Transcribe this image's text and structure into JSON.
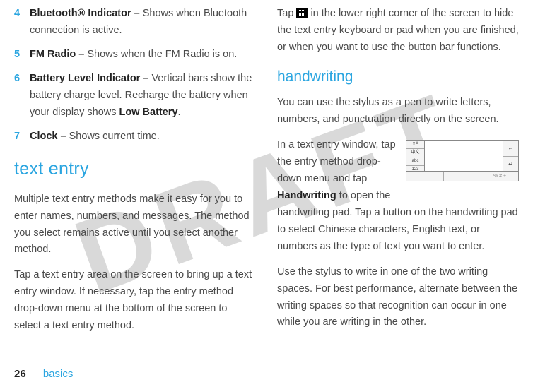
{
  "watermark": "DRAFT",
  "leftCol": {
    "indicators": [
      {
        "num": "4",
        "title": "Bluetooth® Indicator – ",
        "body": "Shows when Bluetooth connection is active."
      },
      {
        "num": "5",
        "title": "FM Radio – ",
        "body": "Shows when the FM Radio is on."
      },
      {
        "num": "6",
        "title": "Battery Level Indicator – ",
        "body": "Vertical bars show the battery charge level. Recharge the battery when your display shows ",
        "condensed": "Low Battery",
        "tail": "."
      },
      {
        "num": "7",
        "title": "Clock – ",
        "body": "Shows current time."
      }
    ],
    "heading": "text entry",
    "p1": "Multiple text entry methods make it easy for you to enter names, numbers, and messages. The method you select remains active until you select another method.",
    "p2": "Tap a text entry area on the screen to bring up a text entry window. If necessary, tap the entry method drop-down menu at the bottom of the screen to select a text entry method."
  },
  "rightCol": {
    "topPara_a": "Tap ",
    "topPara_b": " in the lower right corner of the screen to hide the text entry keyboard or pad when you are finished, or when you want to use the button bar functions.",
    "subheading": "handwriting",
    "p1": "You can use the stylus as a pen to write letters, numbers, and punctuation directly on the screen.",
    "p2a": "In a text entry window, tap the entry method drop-down menu and tap ",
    "p2cond": "Handwriting",
    "p2b": " to open the handwriting pad. Tap a button on the handwriting pad to select Chinese characters, English text, or numbers as the type of text you want to enter.",
    "p3": "Use the stylus to write in one of the two writing spaces. For best performance, alternate between the writing spaces so that recognition can occur in one while you are writing in the other."
  },
  "hwPad": {
    "leftLabels": [
      "⇧A",
      "中文",
      "abc",
      "123"
    ],
    "rightLabels": [
      "←",
      "↵"
    ],
    "bottomLabels": [
      "",
      "",
      "% # +"
    ]
  },
  "footer": {
    "page": "26",
    "section": "basics"
  }
}
